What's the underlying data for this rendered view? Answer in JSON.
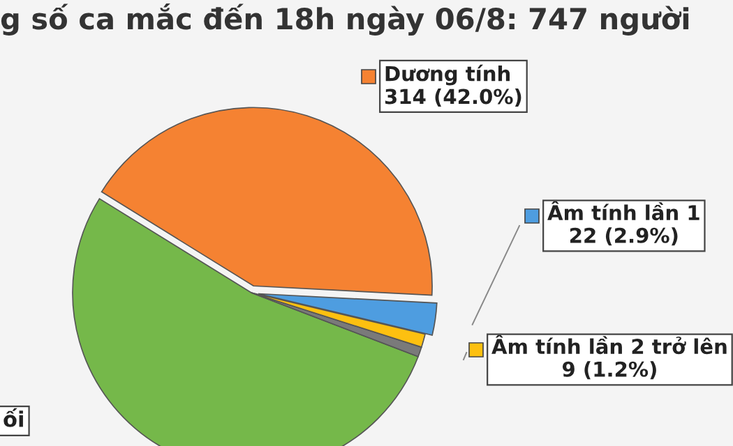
{
  "chart_data": {
    "type": "pie",
    "title": "g số ca mắc đến 18h ngày 06/8: 747 người",
    "categories": [
      "Dương tính",
      null,
      null,
      "Âm tính lần 2 trở lên",
      "Âm tính lần 1"
    ],
    "values": [
      42.0,
      53.0,
      0.9,
      1.2,
      2.9
    ],
    "colors": [
      "#f58232",
      "#75b84a",
      "#7a7a7a",
      "#fdc010",
      "#4e9de0"
    ],
    "value_labels": [
      "314 (42.0%)",
      null,
      null,
      "9 (1.2%)",
      "22 (2.9%)"
    ],
    "annotations": [
      "ối"
    ],
    "legend": "right"
  }
}
